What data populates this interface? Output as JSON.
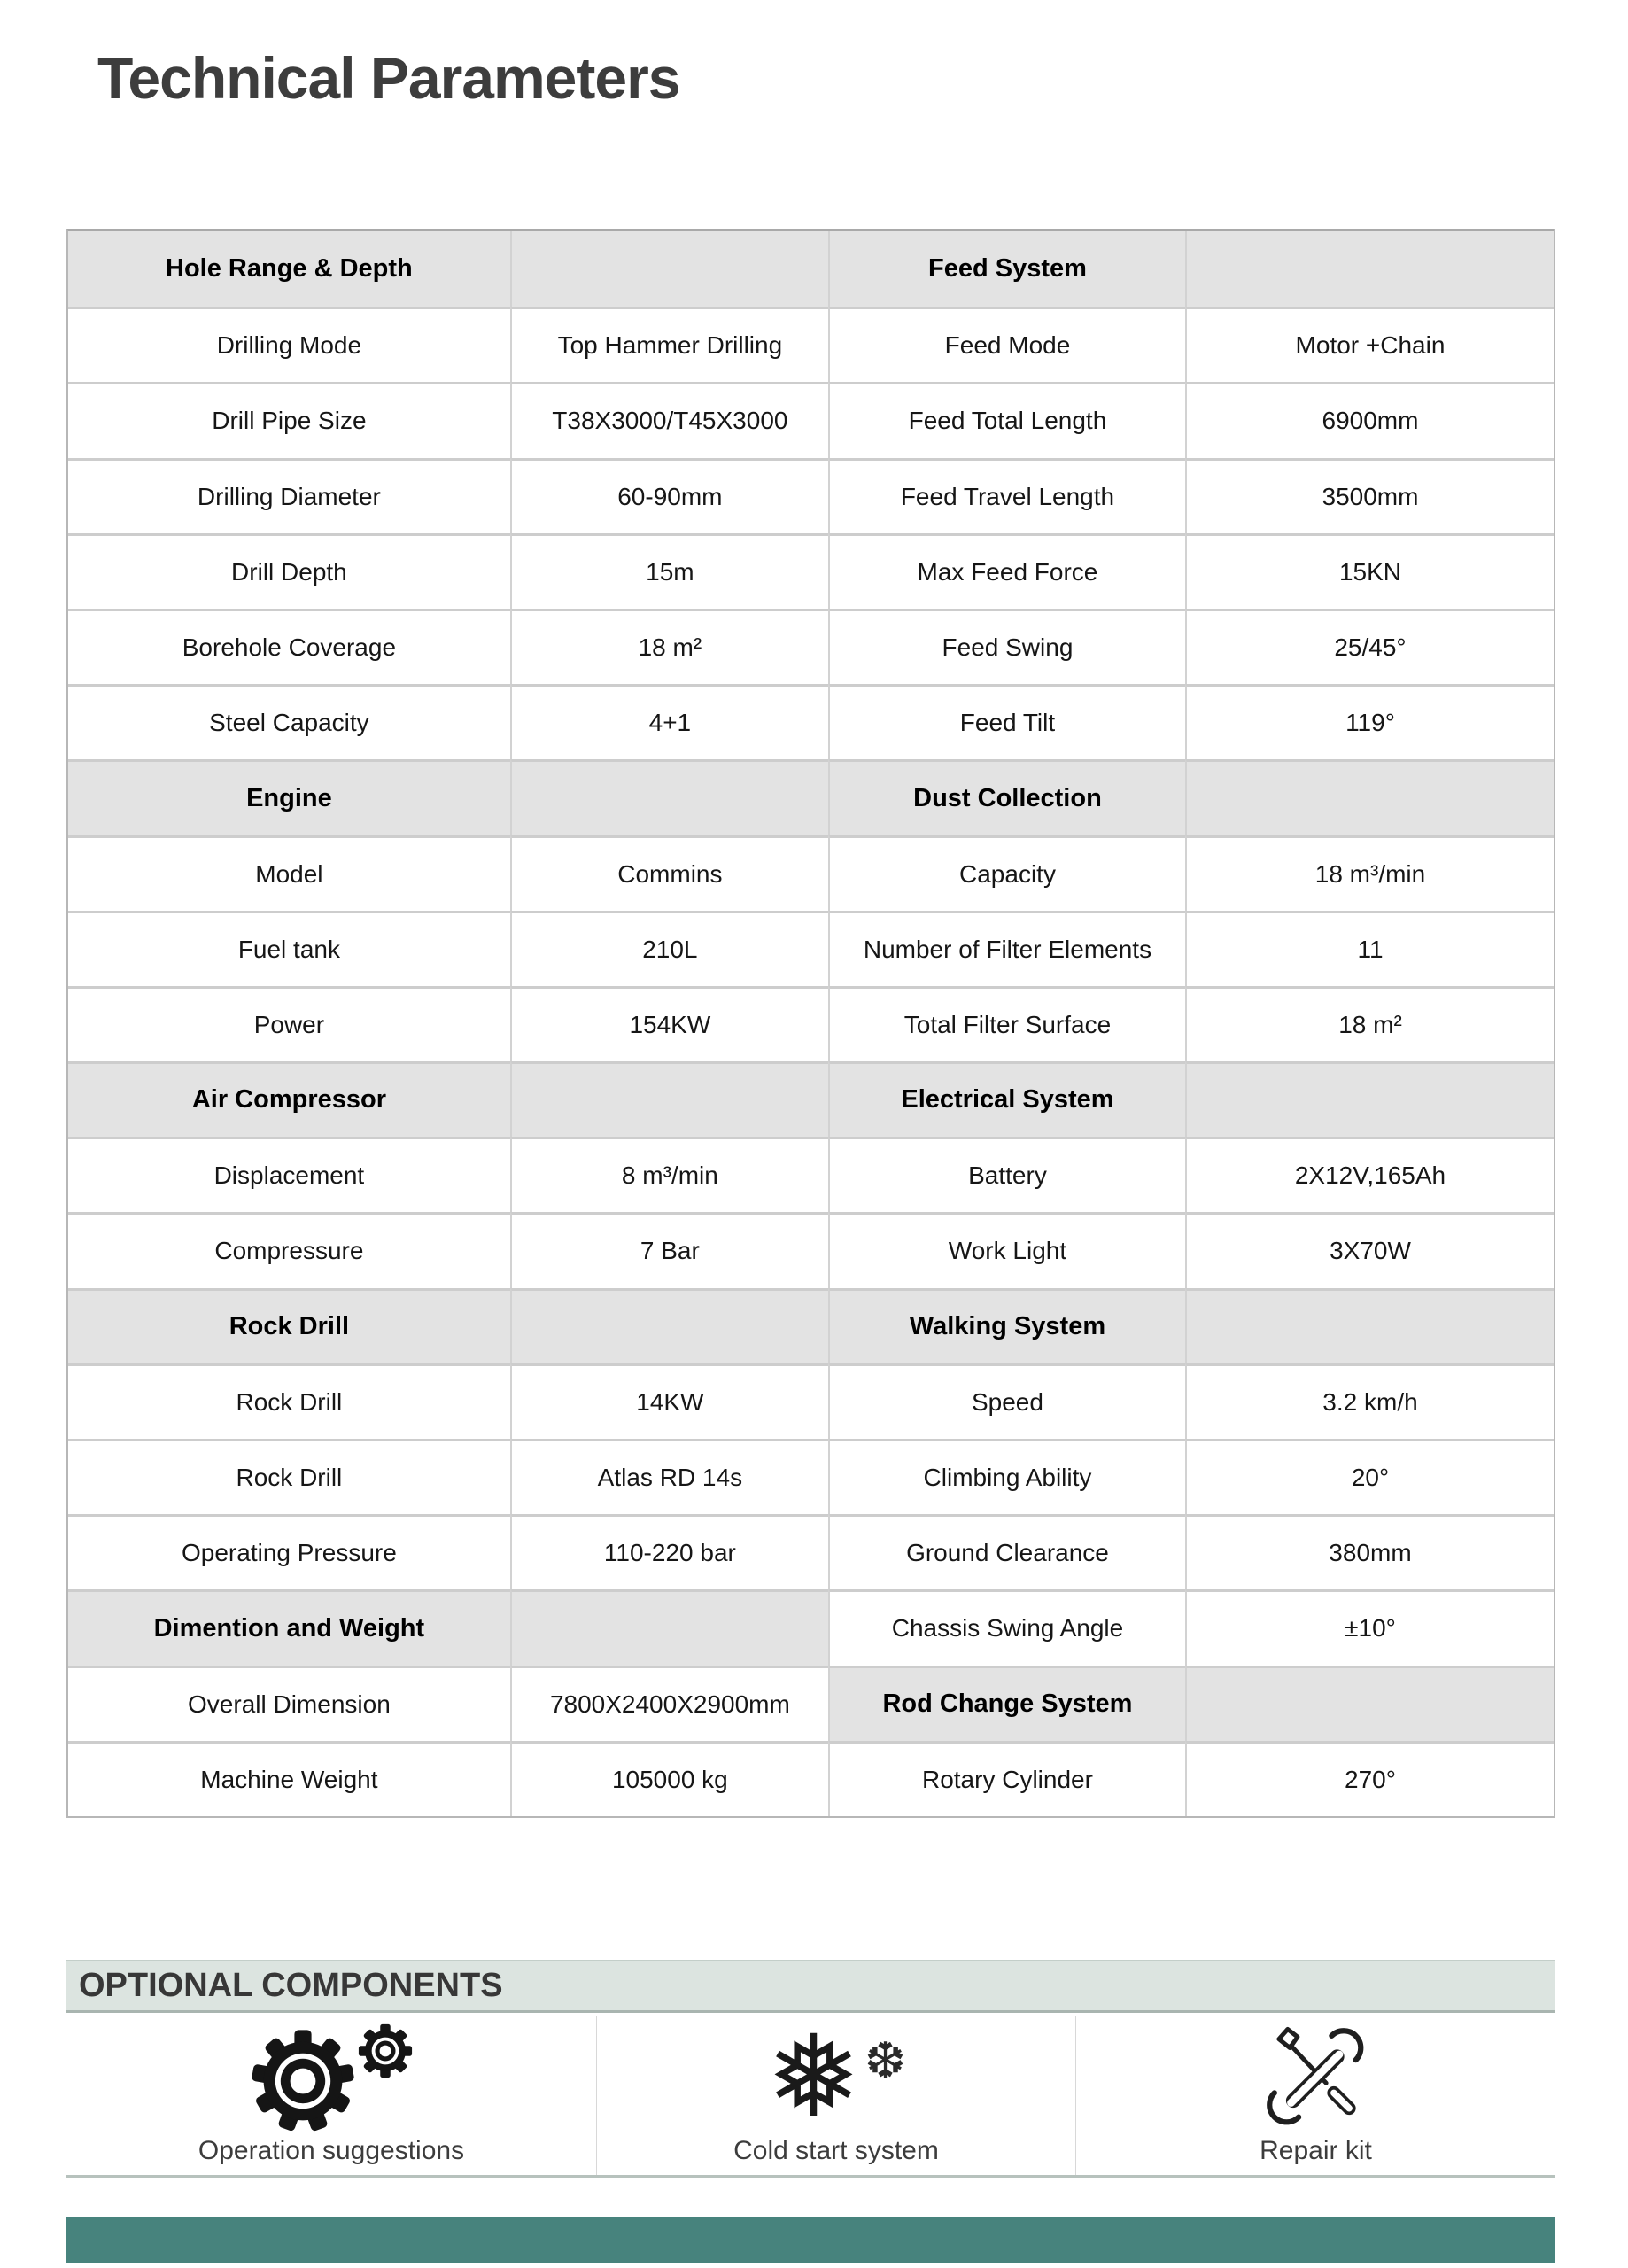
{
  "page": {
    "title": "Technical Parameters"
  },
  "table": {
    "rows": [
      {
        "l": [
          "Hole Range & Depth",
          ""
        ],
        "lh": true,
        "r": [
          "Feed System",
          ""
        ],
        "rh": true
      },
      {
        "l": [
          "Drilling Mode",
          "Top Hammer Drilling"
        ],
        "r": [
          "Feed Mode",
          "Motor +Chain"
        ]
      },
      {
        "l": [
          "Drill Pipe Size",
          "T38X3000/T45X3000"
        ],
        "r": [
          "Feed Total Length",
          "6900mm"
        ]
      },
      {
        "l": [
          "Drilling Diameter",
          "60-90mm"
        ],
        "r": [
          "Feed Travel Length",
          "3500mm"
        ]
      },
      {
        "l": [
          "Drill Depth",
          "15m"
        ],
        "r": [
          "Max Feed Force",
          "15KN"
        ]
      },
      {
        "l": [
          "Borehole Coverage",
          "18 m²"
        ],
        "r": [
          "Feed Swing",
          "25/45°"
        ]
      },
      {
        "l": [
          "Steel Capacity",
          "4+1"
        ],
        "r": [
          "Feed Tilt",
          "119°"
        ]
      },
      {
        "l": [
          "Engine",
          ""
        ],
        "lh": true,
        "r": [
          "Dust Collection",
          ""
        ],
        "rh": true
      },
      {
        "l": [
          "Model",
          "Commins"
        ],
        "r": [
          "Capacity",
          "18 m³/min"
        ]
      },
      {
        "l": [
          "Fuel tank",
          "210L"
        ],
        "r": [
          "Number of Filter Elements",
          "11"
        ]
      },
      {
        "l": [
          "Power",
          "154KW"
        ],
        "r": [
          "Total Filter Surface",
          "18 m²"
        ]
      },
      {
        "l": [
          "Air Compressor",
          ""
        ],
        "lh": true,
        "r": [
          "Electrical System",
          ""
        ],
        "rh": true
      },
      {
        "l": [
          "Displacement",
          "8 m³/min"
        ],
        "r": [
          "Battery",
          "2X12V,165Ah"
        ]
      },
      {
        "l": [
          "Compressure",
          "7 Bar"
        ],
        "r": [
          "Work Light",
          "3X70W"
        ]
      },
      {
        "l": [
          "Rock Drill",
          ""
        ],
        "lh": true,
        "r": [
          "Walking System",
          ""
        ],
        "rh": true
      },
      {
        "l": [
          "Rock Drill",
          "14KW"
        ],
        "r": [
          "Speed",
          "3.2 km/h"
        ]
      },
      {
        "l": [
          "Rock Drill",
          "Atlas RD 14s"
        ],
        "r": [
          "Climbing Ability",
          "20°"
        ]
      },
      {
        "l": [
          "Operating Pressure",
          "110-220 bar"
        ],
        "r": [
          "Ground Clearance",
          "380mm"
        ]
      },
      {
        "l": [
          "Dimention and Weight",
          ""
        ],
        "lh": true,
        "r": [
          "Chassis Swing Angle",
          "±10°"
        ]
      },
      {
        "l": [
          "Overall Dimension",
          "7800X2400X2900mm"
        ],
        "r": [
          "Rod Change System",
          ""
        ],
        "rh": true
      },
      {
        "l": [
          "Machine Weight",
          "105000 kg"
        ],
        "r": [
          "Rotary Cylinder",
          "270°"
        ]
      }
    ]
  },
  "optional": {
    "title": "OPTIONAL COMPONENTS",
    "items": [
      {
        "icon": "gears-icon",
        "label": "Operation suggestions"
      },
      {
        "icon": "snowflake-icon",
        "label": "Cold start system"
      },
      {
        "icon": "repair-kit-icon",
        "label": "Repair kit"
      }
    ]
  },
  "colors": {
    "title_text": "#3d3d3d",
    "header_row_bg": "#e3e3e3",
    "table_border": "#cdcdcd",
    "banner_bg": "#dce4e0",
    "footer_accent": "#47837d"
  }
}
